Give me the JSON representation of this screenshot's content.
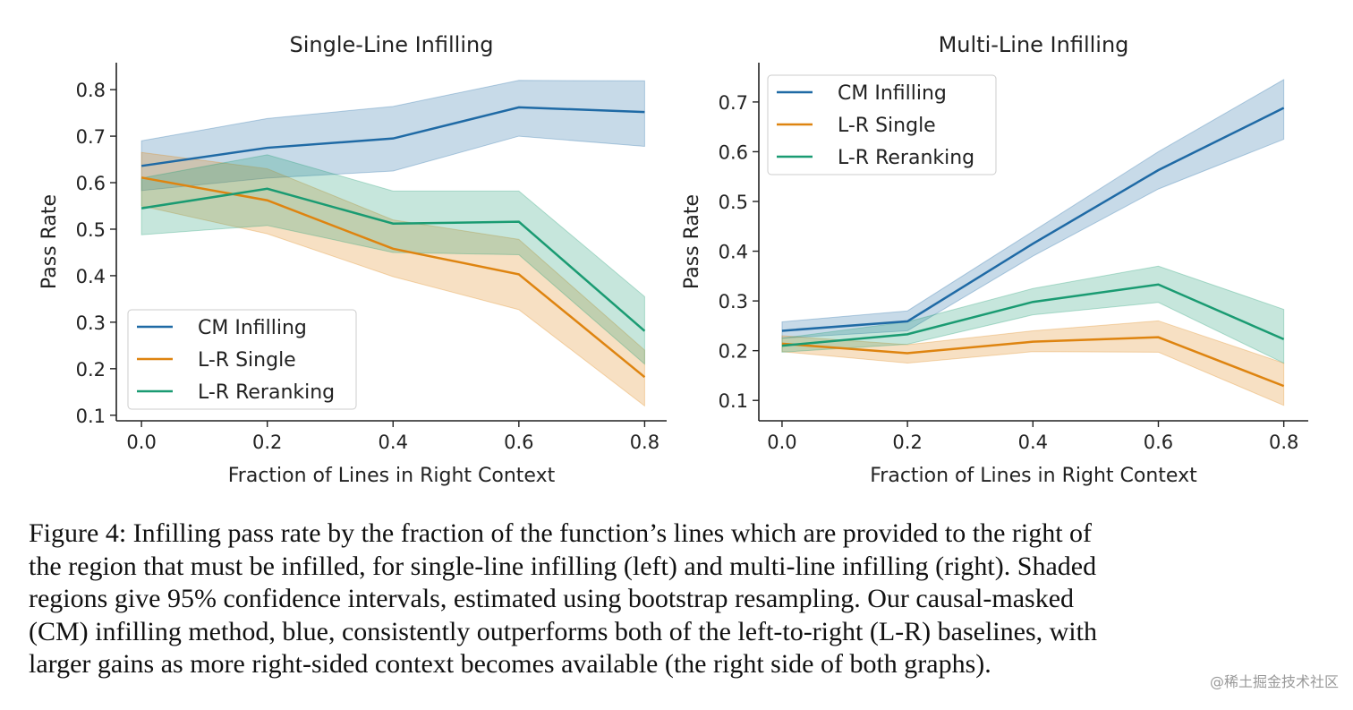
{
  "chart_data": [
    {
      "type": "line",
      "title": "Single-Line Infilling",
      "xlabel": "Fraction of Lines in Right Context",
      "ylabel": "Pass Rate",
      "x": [
        0.0,
        0.2,
        0.4,
        0.6,
        0.8
      ],
      "xticks": [
        "0.0",
        "0.2",
        "0.4",
        "0.6",
        "0.8"
      ],
      "yticks": [
        "0.1",
        "0.2",
        "0.3",
        "0.4",
        "0.5",
        "0.6",
        "0.7",
        "0.8"
      ],
      "xlim": [
        -0.04,
        0.835
      ],
      "ylim": [
        0.088,
        0.858
      ],
      "grid": false,
      "legend": "bottom-left",
      "series": [
        {
          "name": "CM Infilling",
          "color": "#1f6aa5",
          "values": [
            0.636,
            0.675,
            0.695,
            0.762,
            0.752
          ],
          "ci_low": [
            0.583,
            0.61,
            0.625,
            0.7,
            0.678
          ],
          "ci_high": [
            0.69,
            0.738,
            0.764,
            0.82,
            0.819
          ]
        },
        {
          "name": "L-R Single",
          "color": "#de8410",
          "values": [
            0.611,
            0.562,
            0.458,
            0.403,
            0.182
          ],
          "ci_low": [
            0.55,
            0.49,
            0.398,
            0.327,
            0.12
          ],
          "ci_high": [
            0.665,
            0.63,
            0.52,
            0.478,
            0.24
          ]
        },
        {
          "name": "L-R Reranking",
          "color": "#1a9b72",
          "values": [
            0.545,
            0.587,
            0.512,
            0.516,
            0.281
          ],
          "ci_low": [
            0.488,
            0.508,
            0.45,
            0.445,
            0.21
          ],
          "ci_high": [
            0.61,
            0.66,
            0.582,
            0.582,
            0.355
          ]
        }
      ]
    },
    {
      "type": "line",
      "title": "Multi-Line Infilling",
      "xlabel": "Fraction of Lines in Right Context",
      "ylabel": "Pass Rate",
      "x": [
        0.0,
        0.2,
        0.4,
        0.6,
        0.8
      ],
      "xticks": [
        "0.0",
        "0.2",
        "0.4",
        "0.6",
        "0.8"
      ],
      "yticks": [
        "0.1",
        "0.2",
        "0.3",
        "0.4",
        "0.5",
        "0.6",
        "0.7"
      ],
      "xlim": [
        -0.037,
        0.839
      ],
      "ylim": [
        0.059,
        0.779
      ],
      "grid": false,
      "legend": "top-left",
      "series": [
        {
          "name": "CM Infilling",
          "color": "#1f6aa5",
          "values": [
            0.24,
            0.259,
            0.415,
            0.563,
            0.688
          ],
          "ci_low": [
            0.225,
            0.24,
            0.39,
            0.525,
            0.625
          ],
          "ci_high": [
            0.258,
            0.28,
            0.44,
            0.6,
            0.745
          ]
        },
        {
          "name": "L-R Single",
          "color": "#de8410",
          "values": [
            0.214,
            0.195,
            0.218,
            0.227,
            0.129
          ],
          "ci_low": [
            0.198,
            0.175,
            0.198,
            0.197,
            0.09
          ],
          "ci_high": [
            0.23,
            0.212,
            0.24,
            0.26,
            0.175
          ]
        },
        {
          "name": "L-R Reranking",
          "color": "#1a9b72",
          "values": [
            0.21,
            0.233,
            0.298,
            0.333,
            0.223
          ],
          "ci_low": [
            0.197,
            0.213,
            0.272,
            0.297,
            0.175
          ],
          "ci_high": [
            0.225,
            0.258,
            0.325,
            0.37,
            0.283
          ]
        }
      ]
    }
  ],
  "caption": {
    "lines": [
      "Figure 4:  Infilling pass rate by the fraction of the function’s lines which are provided to the right of",
      "the region that must be infilled, for single-line infilling (left) and multi-line infilling (right). Shaded",
      "regions give 95% confidence intervals, estimated using bootstrap resampling. Our causal-masked",
      "(CM) infilling method, blue, consistently outperforms both of the left-to-right (L-R) baselines, with",
      "larger gains as more right-sided context becomes available (the right side of both graphs)."
    ]
  },
  "watermark": "@稀土掘金技术社区"
}
